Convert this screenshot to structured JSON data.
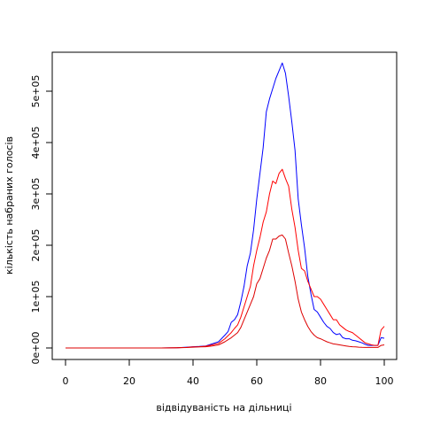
{
  "chart_data": {
    "type": "line",
    "title": "",
    "xlabel": "відвідуваність на дільниці",
    "ylabel": "кількість набраних голосів",
    "xlim": [
      0,
      100
    ],
    "ylim": [
      0,
      550000
    ],
    "x_ticks": [
      0,
      20,
      40,
      60,
      80,
      100
    ],
    "x_tick_labels": [
      "0",
      "20",
      "40",
      "60",
      "80",
      "100"
    ],
    "y_ticks": [
      0,
      100000,
      200000,
      300000,
      400000,
      500000
    ],
    "y_tick_labels": [
      "0e+00",
      "1e+05",
      "2e+05",
      "3e+05",
      "4e+05",
      "5e+05"
    ],
    "grid": false,
    "colors": {
      "blue": "#0000ff",
      "red": "#ff0000",
      "darkred": "#dd0000",
      "axis": "#000000"
    },
    "series": [
      {
        "color": "#0000ff",
        "points": [
          [
            0,
            0
          ],
          [
            5,
            0
          ],
          [
            10,
            0
          ],
          [
            15,
            0
          ],
          [
            20,
            0
          ],
          [
            25,
            0
          ],
          [
            30,
            0
          ],
          [
            35,
            500
          ],
          [
            38,
            1500
          ],
          [
            40,
            2500
          ],
          [
            42,
            3000
          ],
          [
            44,
            4000
          ],
          [
            46,
            8000
          ],
          [
            48,
            12000
          ],
          [
            50,
            25000
          ],
          [
            51,
            32000
          ],
          [
            52,
            50000
          ],
          [
            53,
            55000
          ],
          [
            54,
            65000
          ],
          [
            55,
            90000
          ],
          [
            56,
            120000
          ],
          [
            57,
            160000
          ],
          [
            58,
            185000
          ],
          [
            59,
            230000
          ],
          [
            60,
            290000
          ],
          [
            61,
            340000
          ],
          [
            62,
            390000
          ],
          [
            63,
            460000
          ],
          [
            64,
            485000
          ],
          [
            65,
            505000
          ],
          [
            66,
            525000
          ],
          [
            67,
            540000
          ],
          [
            68,
            555000
          ],
          [
            69,
            535000
          ],
          [
            70,
            490000
          ],
          [
            71,
            440000
          ],
          [
            72,
            385000
          ],
          [
            73,
            290000
          ],
          [
            74,
            240000
          ],
          [
            75,
            195000
          ],
          [
            76,
            140000
          ],
          [
            77,
            105000
          ],
          [
            78,
            75000
          ],
          [
            79,
            70000
          ],
          [
            80,
            60000
          ],
          [
            81,
            50000
          ],
          [
            82,
            42000
          ],
          [
            83,
            38000
          ],
          [
            84,
            30000
          ],
          [
            85,
            26000
          ],
          [
            86,
            28000
          ],
          [
            87,
            20000
          ],
          [
            88,
            18000
          ],
          [
            89,
            18000
          ],
          [
            90,
            15000
          ],
          [
            91,
            14000
          ],
          [
            92,
            12000
          ],
          [
            93,
            10000
          ],
          [
            94,
            7000
          ],
          [
            95,
            5000
          ],
          [
            96,
            5000
          ],
          [
            97,
            5000
          ],
          [
            98,
            5000
          ],
          [
            99,
            20000
          ],
          [
            100,
            19000
          ]
        ]
      },
      {
        "color": "#ff0000",
        "points": [
          [
            0,
            0
          ],
          [
            5,
            0
          ],
          [
            10,
            0
          ],
          [
            15,
            0
          ],
          [
            20,
            0
          ],
          [
            25,
            0
          ],
          [
            30,
            0
          ],
          [
            35,
            500
          ],
          [
            38,
            1000
          ],
          [
            40,
            2000
          ],
          [
            42,
            2500
          ],
          [
            44,
            3500
          ],
          [
            46,
            6000
          ],
          [
            48,
            9000
          ],
          [
            50,
            18000
          ],
          [
            52,
            30000
          ],
          [
            53,
            38000
          ],
          [
            54,
            45000
          ],
          [
            55,
            60000
          ],
          [
            56,
            80000
          ],
          [
            57,
            100000
          ],
          [
            58,
            120000
          ],
          [
            59,
            160000
          ],
          [
            60,
            190000
          ],
          [
            61,
            215000
          ],
          [
            62,
            245000
          ],
          [
            63,
            265000
          ],
          [
            64,
            300000
          ],
          [
            65,
            325000
          ],
          [
            66,
            320000
          ],
          [
            67,
            340000
          ],
          [
            68,
            348000
          ],
          [
            69,
            330000
          ],
          [
            70,
            315000
          ],
          [
            71,
            270000
          ],
          [
            72,
            235000
          ],
          [
            73,
            190000
          ],
          [
            74,
            155000
          ],
          [
            75,
            150000
          ],
          [
            76,
            130000
          ],
          [
            77,
            115000
          ],
          [
            78,
            100000
          ],
          [
            79,
            100000
          ],
          [
            80,
            95000
          ],
          [
            81,
            85000
          ],
          [
            82,
            75000
          ],
          [
            83,
            65000
          ],
          [
            84,
            55000
          ],
          [
            85,
            55000
          ],
          [
            86,
            45000
          ],
          [
            87,
            40000
          ],
          [
            88,
            35000
          ],
          [
            89,
            32000
          ],
          [
            90,
            30000
          ],
          [
            91,
            25000
          ],
          [
            92,
            20000
          ],
          [
            93,
            15000
          ],
          [
            94,
            10000
          ],
          [
            95,
            8000
          ],
          [
            96,
            6000
          ],
          [
            97,
            5000
          ],
          [
            98,
            5000
          ],
          [
            99,
            35000
          ],
          [
            100,
            42000
          ]
        ]
      },
      {
        "color": "#dd0000",
        "points": [
          [
            0,
            0
          ],
          [
            5,
            0
          ],
          [
            10,
            0
          ],
          [
            15,
            0
          ],
          [
            20,
            0
          ],
          [
            25,
            0
          ],
          [
            30,
            0
          ],
          [
            35,
            300
          ],
          [
            38,
            800
          ],
          [
            40,
            1500
          ],
          [
            42,
            2000
          ],
          [
            44,
            2500
          ],
          [
            46,
            4000
          ],
          [
            48,
            6000
          ],
          [
            50,
            12000
          ],
          [
            52,
            20000
          ],
          [
            53,
            25000
          ],
          [
            54,
            30000
          ],
          [
            55,
            40000
          ],
          [
            56,
            55000
          ],
          [
            57,
            70000
          ],
          [
            58,
            85000
          ],
          [
            59,
            100000
          ],
          [
            60,
            125000
          ],
          [
            61,
            135000
          ],
          [
            62,
            155000
          ],
          [
            63,
            175000
          ],
          [
            64,
            190000
          ],
          [
            65,
            212000
          ],
          [
            66,
            212000
          ],
          [
            67,
            218000
          ],
          [
            68,
            220000
          ],
          [
            69,
            212000
          ],
          [
            70,
            185000
          ],
          [
            71,
            160000
          ],
          [
            72,
            130000
          ],
          [
            73,
            95000
          ],
          [
            74,
            70000
          ],
          [
            75,
            55000
          ],
          [
            76,
            42000
          ],
          [
            77,
            32000
          ],
          [
            78,
            25000
          ],
          [
            79,
            20000
          ],
          [
            80,
            18000
          ],
          [
            81,
            15000
          ],
          [
            82,
            12000
          ],
          [
            83,
            10000
          ],
          [
            84,
            8000
          ],
          [
            85,
            7000
          ],
          [
            86,
            6000
          ],
          [
            87,
            5000
          ],
          [
            88,
            4000
          ],
          [
            89,
            3000
          ],
          [
            90,
            2500
          ],
          [
            91,
            2000
          ],
          [
            92,
            1500
          ],
          [
            93,
            1200
          ],
          [
            94,
            1000
          ],
          [
            95,
            1000
          ],
          [
            96,
            1000
          ],
          [
            97,
            1000
          ],
          [
            98,
            1000
          ],
          [
            99,
            5000
          ],
          [
            100,
            6000
          ]
        ]
      }
    ]
  }
}
